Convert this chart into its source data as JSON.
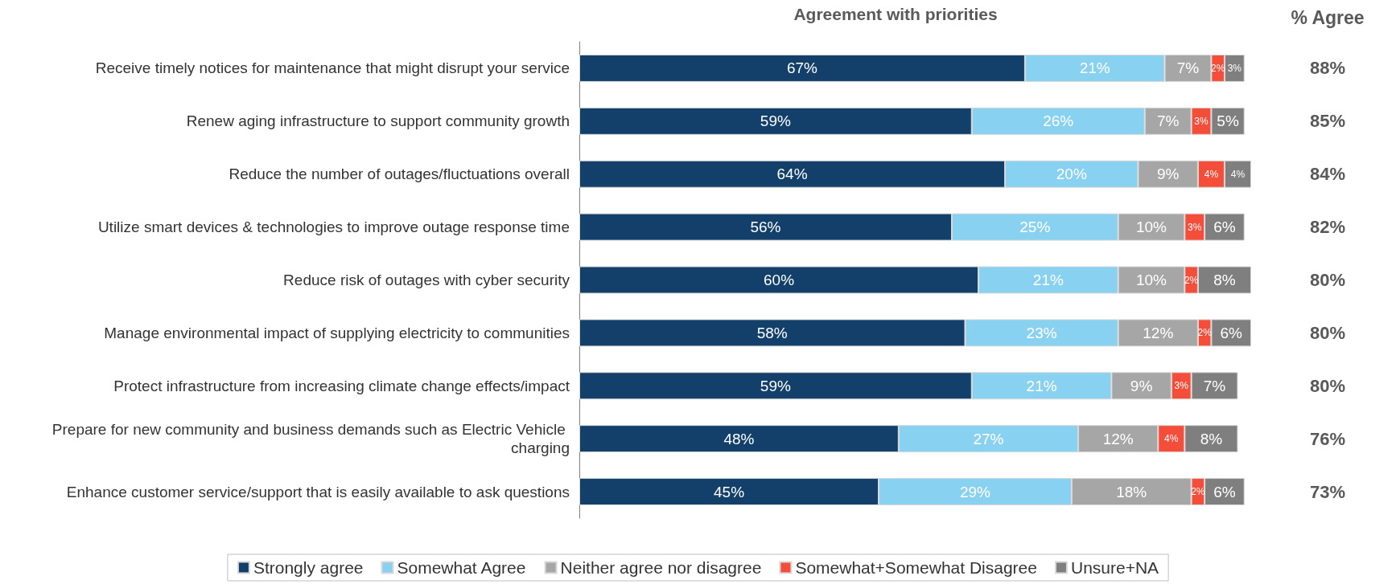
{
  "chart_data": {
    "type": "bar",
    "orientation": "horizontal",
    "stacked": true,
    "title": "Agreement with priorities",
    "categories": [
      "Receive timely notices for maintenance that might disrupt your service",
      "Renew aging infrastructure to support community growth",
      "Reduce the number of outages/fluctuations overall",
      "Utilize smart devices & technologies to improve outage response time",
      "Reduce risk of outages with cyber security",
      "Manage environmental impact of supplying electricity to communities",
      "Protect infrastructure from increasing climate change effects/impact",
      "Prepare for new community and business demands such as Electric Vehicle charging",
      "Enhance customer service/support that is easily available to ask questions"
    ],
    "series": [
      {
        "name": "Strongly agree",
        "color": "#12406a",
        "values": [
          67,
          59,
          64,
          56,
          60,
          58,
          59,
          48,
          45
        ],
        "value_labels": [
          "67%",
          "59%",
          "64%",
          "56%",
          "60%",
          "58%",
          "59%",
          "48%",
          "45%"
        ]
      },
      {
        "name": "Somewhat Agree",
        "color": "#89d1f1",
        "values": [
          21,
          26,
          20,
          25,
          21,
          23,
          21,
          27,
          29
        ],
        "value_labels": [
          "21%",
          "26%",
          "20%",
          "25%",
          "21%",
          "23%",
          "21%",
          "27%",
          "29%"
        ]
      },
      {
        "name": "Neither agree nor disagree",
        "color": "#a6a6a6",
        "values": [
          7,
          7,
          9,
          10,
          10,
          12,
          9,
          12,
          18
        ],
        "value_labels": [
          "7%",
          "7%",
          "9%",
          "10%",
          "10%",
          "12%",
          "9%",
          "12%",
          "18%"
        ]
      },
      {
        "name": "Somewhat+Somewhat Disagree",
        "color": "#f44e3b",
        "values": [
          2,
          3,
          4,
          3,
          2,
          2,
          3,
          4,
          2
        ],
        "value_labels": [
          "2%",
          "3%",
          "4%",
          "3%",
          "2%",
          "2%",
          "3%",
          "4%",
          "2%"
        ]
      },
      {
        "name": "Unsure+NA",
        "color": "#7f7f7f",
        "values": [
          3,
          5,
          4,
          6,
          8,
          6,
          7,
          8,
          6
        ],
        "value_labels": [
          "3%",
          "5%",
          "4%",
          "6%",
          "8%",
          "6%",
          "7%",
          "8%",
          "6%"
        ]
      }
    ],
    "legend": "bottom",
    "annotations": [
      "% Agree",
      "88%",
      "85%",
      "84%",
      "82%",
      "80%",
      "80%",
      "80%",
      "76%",
      "73%"
    ]
  }
}
